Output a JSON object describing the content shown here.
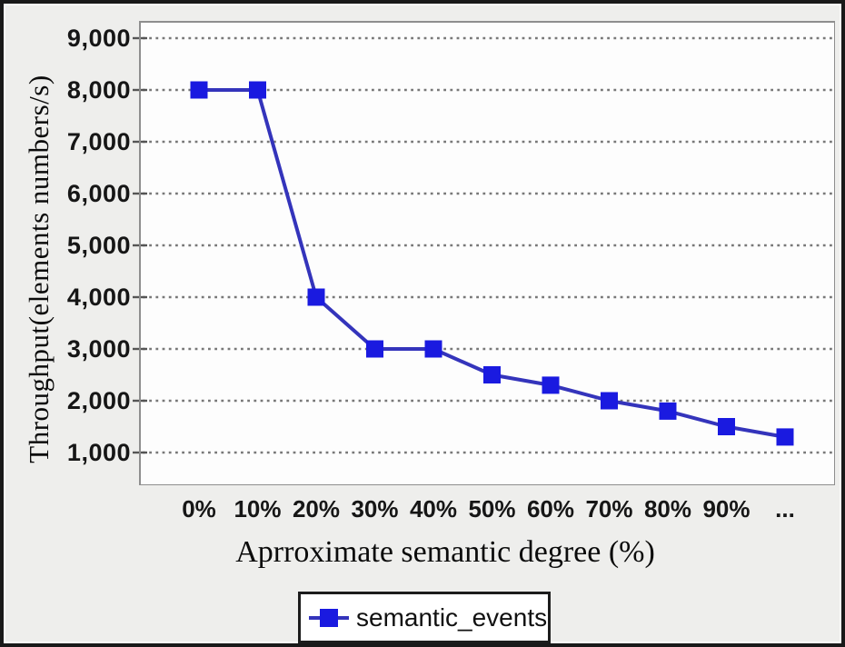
{
  "chart_data": {
    "type": "line",
    "title": "",
    "xlabel": "Aprroximate semantic degree (%)",
    "ylabel": "Throughput(elements numbers/s)",
    "categories": [
      "0%",
      "10%",
      "20%",
      "30%",
      "40%",
      "50%",
      "60%",
      "70%",
      "80%",
      "90%",
      "..."
    ],
    "series": [
      {
        "name": "semantic_events",
        "values": [
          8000,
          8000,
          4000,
          3000,
          3000,
          2500,
          2300,
          2000,
          1800,
          1500,
          1300
        ]
      }
    ],
    "ylim": [
      1000,
      9000
    ],
    "y_ticks": [
      9000,
      8000,
      7000,
      6000,
      5000,
      4000,
      3000,
      2000,
      1000
    ],
    "y_tick_labels": [
      "9,000",
      "8,000",
      "7,000",
      "6,000",
      "5,000",
      "4,000",
      "3,000",
      "2,000",
      "1,000"
    ],
    "grid": "horizontal-dashed",
    "legend_position": "bottom-center",
    "marker": "square"
  },
  "colors": {
    "background": "#eeeeec",
    "plot_background": "#fdfdfd",
    "plot_border": "#8e8e8e",
    "gridline": "#787878",
    "axis_tick": "#555555",
    "line": "#3434bb",
    "marker": "#1a1ae0",
    "legend_border": "#1c1c1c",
    "frame_border": "#191919",
    "text": "#161616"
  }
}
